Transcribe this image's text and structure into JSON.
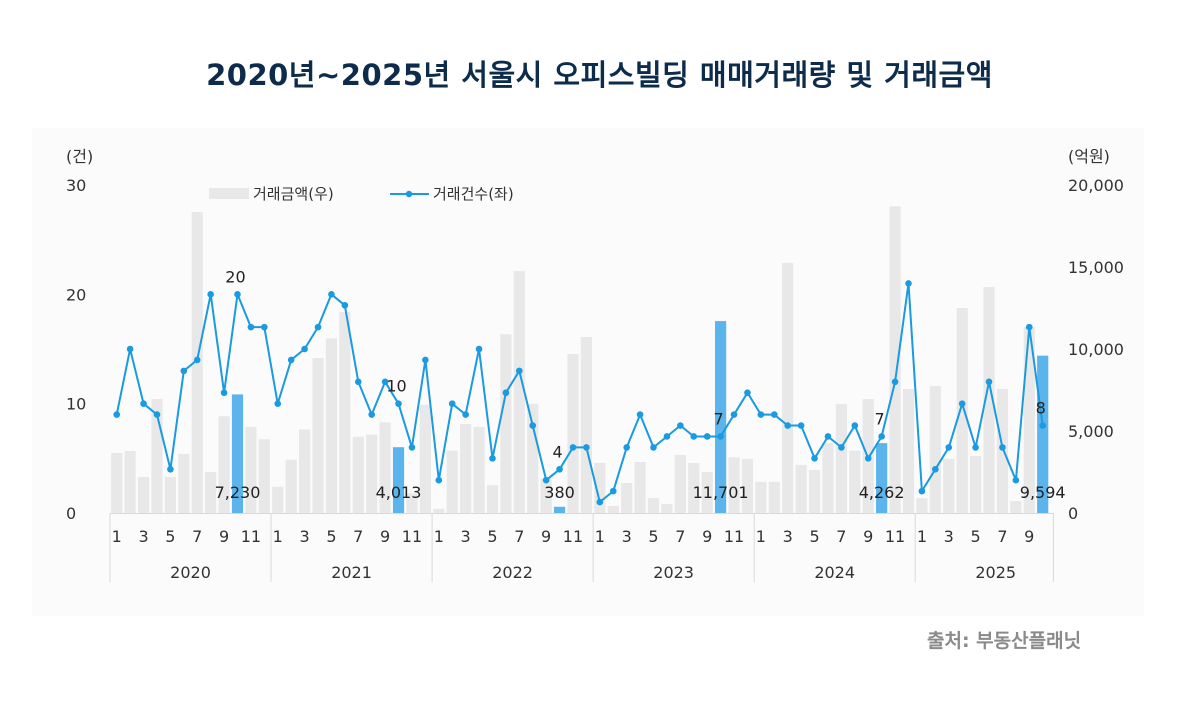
{
  "title": "2020년~2025년 서울시 오피스빌딩 매매거래량 및 거래금액",
  "source": "출처: 부동산플래닛",
  "colors": {
    "bar": "#e8e8e8",
    "bar_highlight": "#5bb5ec",
    "line": "#1a9ae0",
    "title": "#0d2b4a"
  },
  "legend": {
    "bar_label": "거래금액(우)",
    "line_label": "거래건수(좌)"
  },
  "chart_data": {
    "type": "bar+line",
    "title": "2020년~2025년 서울시 오피스빌딩 매매거래량 및 거래금액",
    "y_left_label": "(건)",
    "y_right_label": "(억원)",
    "y_left_ticks": [
      "0",
      "10",
      "20",
      "30"
    ],
    "y_right_ticks": [
      "0",
      "5,000",
      "10,000",
      "15,000",
      "20,000"
    ],
    "ylim_left": [
      0,
      30
    ],
    "ylim_right": [
      0,
      20000
    ],
    "month_ticks": [
      "1",
      "3",
      "5",
      "7",
      "9",
      "11"
    ],
    "years": [
      "2020",
      "2021",
      "2022",
      "2023",
      "2024",
      "2025"
    ],
    "months_per_year": [
      12,
      12,
      12,
      12,
      12,
      10
    ],
    "series": [
      {
        "name": "거래금액(우)",
        "axis": "right",
        "type": "bar",
        "values": [
          3660,
          3780,
          2200,
          6950,
          2200,
          3600,
          18350,
          2500,
          5900,
          7230,
          5250,
          4500,
          1600,
          3250,
          5100,
          9450,
          10650,
          12250,
          4650,
          4770,
          5530,
          4013,
          1200,
          6600,
          250,
          3800,
          5430,
          5250,
          1700,
          10900,
          14750,
          6650,
          2100,
          380,
          9700,
          10730,
          3050,
          430,
          1830,
          3110,
          910,
          550,
          3540,
          3050,
          2500,
          11701,
          3400,
          3300,
          1900,
          1900,
          15250,
          2930,
          2620,
          4270,
          6650,
          3800,
          6950,
          4262,
          18700,
          7560,
          900,
          7750,
          3300,
          12500,
          3480,
          13780,
          7560,
          730,
          11340,
          9594
        ]
      },
      {
        "name": "거래건수(좌)",
        "axis": "left",
        "type": "line",
        "values": [
          9,
          15,
          10,
          9,
          4,
          13,
          14,
          20,
          11,
          20,
          17,
          17,
          10,
          14,
          15,
          17,
          20,
          19,
          12,
          9,
          12,
          10,
          6,
          14,
          3,
          10,
          9,
          15,
          5,
          11,
          13,
          8,
          3,
          4,
          6,
          6,
          1,
          2,
          6,
          9,
          6,
          7,
          8,
          7,
          7,
          7,
          9,
          11,
          9,
          9,
          8,
          8,
          5,
          7,
          6,
          8,
          5,
          7,
          12,
          21,
          2,
          4,
          6,
          10,
          6,
          12,
          6,
          3,
          17,
          8
        ]
      }
    ],
    "highlighted_indices": [
      9,
      21,
      33,
      45,
      57,
      69
    ],
    "annotations": [
      {
        "index": 9,
        "count_label": "20",
        "amount_label": "7,230"
      },
      {
        "index": 21,
        "count_label": "10",
        "amount_label": "4,013"
      },
      {
        "index": 33,
        "count_label": "4",
        "amount_label": "380"
      },
      {
        "index": 45,
        "count_label": "7",
        "amount_label": "11,701"
      },
      {
        "index": 57,
        "count_label": "7",
        "amount_label": "4,262"
      },
      {
        "index": 69,
        "count_label": "8",
        "amount_label": "9,594"
      }
    ]
  }
}
